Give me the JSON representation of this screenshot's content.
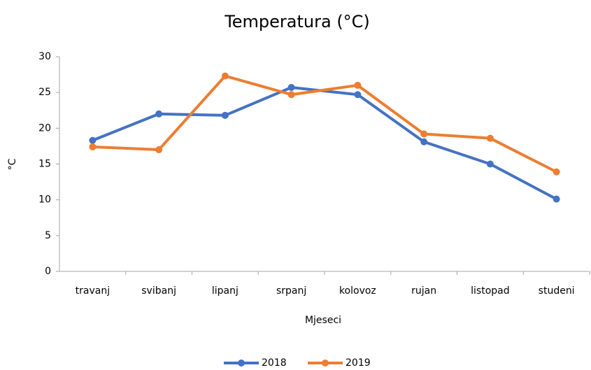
{
  "chart_data": {
    "type": "line",
    "title": "Temperatura (°C)",
    "x_label": "Mjeseci",
    "y_label": "°C",
    "categories": [
      "travanj",
      "svibanj",
      "lipanj",
      "srpanj",
      "kolovoz",
      "rujan",
      "listopad",
      "studeni"
    ],
    "series": [
      {
        "name": "2018",
        "color": "#4472c4",
        "values": [
          18.3,
          22.0,
          21.8,
          25.7,
          24.7,
          18.1,
          15.0,
          10.1
        ]
      },
      {
        "name": "2019",
        "color": "#ed7d31",
        "values": [
          17.4,
          17.0,
          27.3,
          24.7,
          26.0,
          19.2,
          18.6,
          13.9
        ]
      }
    ],
    "ylim": [
      0,
      30
    ],
    "yticks": [
      0,
      5,
      10,
      15,
      20,
      25,
      30
    ],
    "grid": false,
    "legend": "bottom"
  }
}
